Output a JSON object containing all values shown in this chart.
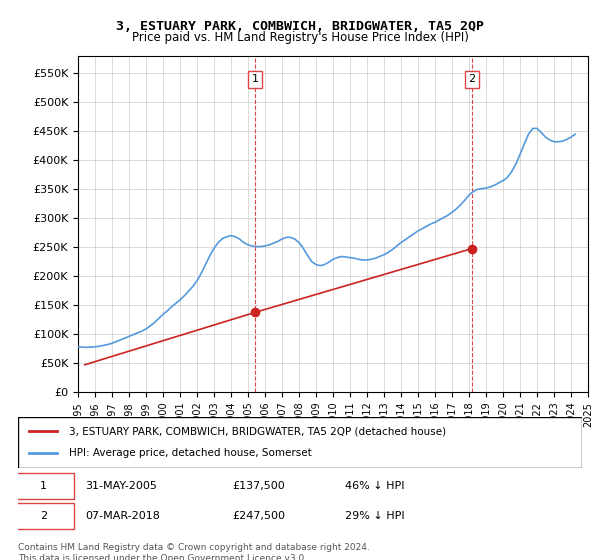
{
  "title": "3, ESTUARY PARK, COMBWICH, BRIDGWATER, TA5 2QP",
  "subtitle": "Price paid vs. HM Land Registry's House Price Index (HPI)",
  "ylabel_ticks": [
    "£0",
    "£50K",
    "£100K",
    "£150K",
    "£200K",
    "£250K",
    "£300K",
    "£350K",
    "£400K",
    "£450K",
    "£500K",
    "£550K"
  ],
  "ytick_values": [
    0,
    50000,
    100000,
    150000,
    200000,
    250000,
    300000,
    350000,
    400000,
    450000,
    500000,
    550000
  ],
  "ylim": [
    0,
    580000
  ],
  "hpi_color": "#5599dd",
  "price_color": "#cc2222",
  "marker_color_1": "#cc2222",
  "marker_color_2": "#cc2222",
  "vline_color": "#dd4444",
  "background_color": "#ffffff",
  "grid_color": "#cccccc",
  "legend_label_price": "3, ESTUARY PARK, COMBWICH, BRIDGWATER, TA5 2QP (detached house)",
  "legend_label_hpi": "HPI: Average price, detached house, Somerset",
  "sale1_date": "31-MAY-2005",
  "sale1_price": 137500,
  "sale1_pct": "46% ↓ HPI",
  "sale2_date": "07-MAR-2018",
  "sale2_price": 247500,
  "sale2_pct": "29% ↓ HPI",
  "footnote": "Contains HM Land Registry data © Crown copyright and database right 2024.\nThis data is licensed under the Open Government Licence v3.0.",
  "hpi_years": [
    1995.0,
    1995.25,
    1995.5,
    1995.75,
    1996.0,
    1996.25,
    1996.5,
    1996.75,
    1997.0,
    1997.25,
    1997.5,
    1997.75,
    1998.0,
    1998.25,
    1998.5,
    1998.75,
    1999.0,
    1999.25,
    1999.5,
    1999.75,
    2000.0,
    2000.25,
    2000.5,
    2000.75,
    2001.0,
    2001.25,
    2001.5,
    2001.75,
    2002.0,
    2002.25,
    2002.5,
    2002.75,
    2003.0,
    2003.25,
    2003.5,
    2003.75,
    2004.0,
    2004.25,
    2004.5,
    2004.75,
    2005.0,
    2005.25,
    2005.5,
    2005.75,
    2006.0,
    2006.25,
    2006.5,
    2006.75,
    2007.0,
    2007.25,
    2007.5,
    2007.75,
    2008.0,
    2008.25,
    2008.5,
    2008.75,
    2009.0,
    2009.25,
    2009.5,
    2009.75,
    2010.0,
    2010.25,
    2010.5,
    2010.75,
    2011.0,
    2011.25,
    2011.5,
    2011.75,
    2012.0,
    2012.25,
    2012.5,
    2012.75,
    2013.0,
    2013.25,
    2013.5,
    2013.75,
    2014.0,
    2014.25,
    2014.5,
    2014.75,
    2015.0,
    2015.25,
    2015.5,
    2015.75,
    2016.0,
    2016.25,
    2016.5,
    2016.75,
    2017.0,
    2017.25,
    2017.5,
    2017.75,
    2018.0,
    2018.25,
    2018.5,
    2018.75,
    2019.0,
    2019.25,
    2019.5,
    2019.75,
    2020.0,
    2020.25,
    2020.5,
    2020.75,
    2021.0,
    2021.25,
    2021.5,
    2021.75,
    2022.0,
    2022.25,
    2022.5,
    2022.75,
    2023.0,
    2023.25,
    2023.5,
    2023.75,
    2024.0,
    2024.25
  ],
  "hpi_values": [
    78000,
    77500,
    77000,
    77500,
    78000,
    79000,
    80500,
    82000,
    84000,
    87000,
    90000,
    93000,
    96000,
    99000,
    102000,
    105000,
    109000,
    114000,
    120000,
    127000,
    134000,
    140000,
    147000,
    153000,
    159000,
    166000,
    174000,
    182000,
    192000,
    205000,
    220000,
    235000,
    248000,
    258000,
    265000,
    268000,
    270000,
    268000,
    264000,
    258000,
    254000,
    252000,
    251000,
    251000,
    252000,
    254000,
    257000,
    260000,
    264000,
    267000,
    267000,
    264000,
    258000,
    248000,
    236000,
    225000,
    220000,
    218000,
    220000,
    224000,
    229000,
    232000,
    234000,
    233000,
    232000,
    231000,
    229000,
    228000,
    228000,
    229000,
    231000,
    234000,
    237000,
    241000,
    246000,
    252000,
    258000,
    263000,
    268000,
    273000,
    278000,
    282000,
    286000,
    290000,
    293000,
    297000,
    301000,
    305000,
    310000,
    316000,
    323000,
    331000,
    340000,
    346000,
    350000,
    351000,
    352000,
    354000,
    357000,
    361000,
    365000,
    370000,
    380000,
    393000,
    410000,
    428000,
    445000,
    455000,
    455000,
    448000,
    440000,
    435000,
    432000,
    432000,
    433000,
    436000,
    440000,
    445000
  ],
  "price_years": [
    1995.4,
    2005.42,
    2018.17
  ],
  "price_values": [
    47000,
    137500,
    247500
  ],
  "sale1_year": 2005.42,
  "sale2_year": 2018.17,
  "xmin": 1995,
  "xmax": 2025
}
